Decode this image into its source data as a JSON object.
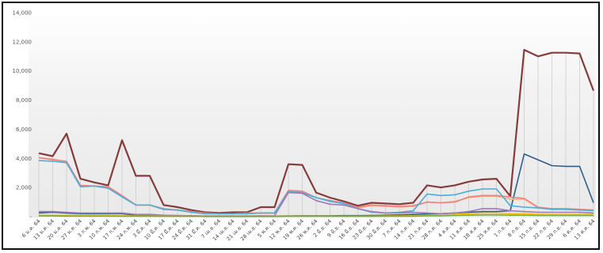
{
  "chart_data": {
    "type": "line",
    "title": "",
    "xlabel": "",
    "ylabel": "",
    "ylim": [
      0,
      14000
    ],
    "yticks": [
      "-",
      "2,000",
      "4,000",
      "6,000",
      "8,000",
      "10,000",
      "12,000",
      "14,000"
    ],
    "ytick_values": [
      0,
      2000,
      4000,
      6000,
      8000,
      10000,
      12000,
      14000
    ],
    "grid": "vertical drop lines",
    "legend": "none",
    "categories": [
      "6 ม.ค. 64",
      "13 ม.ค. 64",
      "20 ม.ค. 64",
      "27 ม.ค. 64",
      "3 ก.พ. 64",
      "10 ก.พ. 64",
      "17 ก.พ. 64",
      "24 ก.พ. 64",
      "3 มี.ค. 64",
      "10 มี.ค. 64",
      "17 มี.ค. 64",
      "24 มี.ค. 64",
      "31 มี.ค. 64",
      "7 เม.ย. 64",
      "14 เม.ย. 64",
      "21 เม.ย. 64",
      "28 เม.ย. 64",
      "5 พ.ค. 64",
      "12 พ.ค. 64",
      "19 พ.ค. 64",
      "26 พ.ค. 64",
      "2 มิ.ย. 64",
      "9 มิ.ย. 64",
      "16 มิ.ย. 64",
      "23 มิ.ย. 64",
      "30 มิ.ย. 64",
      "7 ก.ค. 64",
      "14 ก.ค. 64",
      "21 ก.ค. 64",
      "28 ก.ค. 64",
      "4 ส.ค. 64",
      "11 ส.ค. 64",
      "18 ส.ค. 64",
      "25 ส.ค. 64",
      "1 ก.ย. 64",
      "8 ก.ย. 64",
      "15 ก.ย. 64",
      "22 ก.ย. 64",
      "29 ก.ย. 64",
      "6 ต.ค. 64",
      "13 ต.ค. 64"
    ],
    "series": [
      {
        "color": "#843c3c",
        "values": [
          4350,
          4150,
          5700,
          2600,
          2350,
          2150,
          5250,
          2800,
          2800,
          800,
          650,
          450,
          300,
          250,
          300,
          300,
          650,
          650,
          3600,
          3550,
          1650,
          1300,
          1050,
          750,
          950,
          900,
          850,
          950,
          2150,
          2000,
          2150,
          2400,
          2550,
          2600,
          1400,
          11450,
          11000,
          11250,
          11250,
          11200,
          8650
        ]
      },
      {
        "color": "#2e5f8a",
        "values": [
          250,
          300,
          250,
          200,
          200,
          200,
          200,
          100,
          100,
          80,
          60,
          50,
          40,
          30,
          30,
          40,
          40,
          40,
          50,
          60,
          60,
          60,
          70,
          70,
          80,
          100,
          120,
          150,
          180,
          200,
          250,
          300,
          350,
          350,
          400,
          4300,
          3900,
          3500,
          3450,
          3450,
          950
        ]
      },
      {
        "color": "#f4b183",
        "values": [
          4050,
          3950,
          3750,
          2100,
          2100,
          1950,
          1400,
          800,
          800,
          500,
          450,
          300,
          200,
          200,
          200,
          200,
          250,
          250,
          1750,
          1750,
          1300,
          1100,
          900,
          600,
          750,
          700,
          650,
          700,
          1000,
          950,
          1050,
          1300,
          1400,
          1400,
          1200,
          1200,
          600,
          550,
          550,
          500,
          450
        ]
      },
      {
        "color": "#f08080",
        "values": [
          4050,
          3900,
          3800,
          2150,
          2100,
          2050,
          1450,
          800,
          800,
          550,
          450,
          350,
          250,
          200,
          200,
          250,
          250,
          250,
          1800,
          1750,
          1300,
          1100,
          950,
          650,
          800,
          750,
          700,
          750,
          1000,
          950,
          1000,
          1350,
          1450,
          1450,
          1350,
          1250,
          650,
          550,
          550,
          500,
          450
        ]
      },
      {
        "color": "#4aaed8",
        "values": [
          3850,
          3800,
          3700,
          2050,
          2100,
          1950,
          1350,
          800,
          800,
          500,
          450,
          300,
          200,
          200,
          200,
          200,
          250,
          250,
          1700,
          1650,
          1300,
          1050,
          900,
          550,
          300,
          250,
          300,
          400,
          1550,
          1450,
          1500,
          1750,
          1900,
          1900,
          750,
          650,
          600,
          500,
          500,
          450,
          400
        ]
      },
      {
        "color": "#9b7bb8",
        "values": [
          350,
          350,
          300,
          250,
          250,
          250,
          250,
          150,
          150,
          100,
          80,
          60,
          50,
          50,
          50,
          50,
          60,
          60,
          1650,
          1600,
          1100,
          850,
          800,
          550,
          350,
          250,
          250,
          300,
          250,
          200,
          250,
          350,
          550,
          550,
          400,
          350,
          300,
          300,
          300,
          300,
          250
        ]
      },
      {
        "color": "#ffc000",
        "values": [
          100,
          100,
          90,
          80,
          80,
          70,
          60,
          50,
          50,
          40,
          30,
          20,
          20,
          20,
          20,
          20,
          20,
          20,
          40,
          40,
          40,
          40,
          40,
          40,
          40,
          50,
          60,
          60,
          100,
          100,
          150,
          200,
          250,
          250,
          200,
          200,
          150,
          150,
          150,
          150,
          150
        ]
      },
      {
        "color": "#70ad47",
        "values": [
          50,
          50,
          40,
          40,
          40,
          40,
          30,
          30,
          30,
          20,
          20,
          20,
          10,
          10,
          10,
          10,
          10,
          10,
          20,
          20,
          20,
          20,
          20,
          20,
          20,
          30,
          30,
          30,
          60,
          60,
          80,
          100,
          120,
          120,
          100,
          100,
          80,
          80,
          80,
          80,
          80
        ]
      }
    ]
  }
}
